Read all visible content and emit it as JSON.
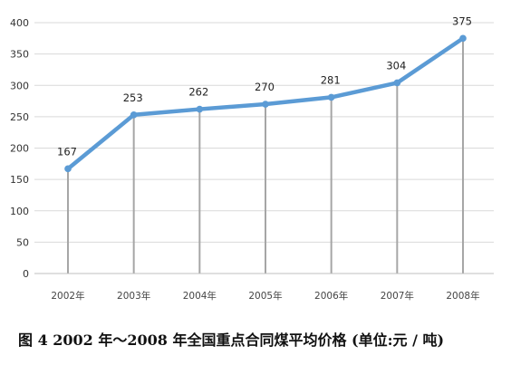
{
  "caption": "图 4   2002 年～2008 年全国重点合同煤平均价格 (单位:元 / 吨)",
  "chart_data": {
    "type": "line",
    "title": "",
    "xlabel": "",
    "ylabel": "",
    "categories": [
      "2002年",
      "2003年",
      "2004年",
      "2005年",
      "2006年",
      "2007年",
      "2008年"
    ],
    "series": [
      {
        "values": [
          167,
          253,
          262,
          270,
          281,
          304,
          375
        ]
      }
    ],
    "data_labels": [
      "167",
      "253",
      "262",
      "270",
      "281",
      "304",
      "375"
    ],
    "ylim": [
      0,
      400
    ],
    "yticks": [
      "0",
      "50",
      "100",
      "150",
      "200",
      "250",
      "300",
      "350",
      "400"
    ],
    "grid": true,
    "drop_lines": true,
    "legend": "none",
    "line_color": "#5b9bd5",
    "grid_color": "#d9d9d9",
    "drop_line_color": "#a6a6a6"
  }
}
